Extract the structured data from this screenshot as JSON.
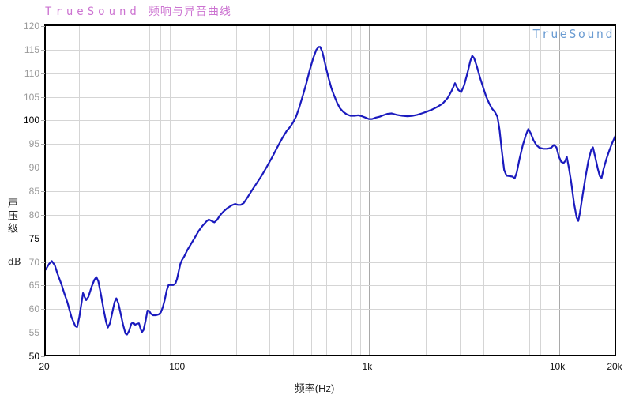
{
  "header": {
    "brand": "TrueSound",
    "title": "频响与异音曲线"
  },
  "watermark": {
    "text": "TrueSound"
  },
  "colors": {
    "curve": "#1a1abe",
    "brand": "#cc73d1",
    "watermark": "#6b9cd2",
    "grid_minor": "#d5d5d5",
    "grid_major": "#a9a9a9",
    "tick_label_minor": "#9a9a9a",
    "tick_label_major": "#000000",
    "frame": "#000000"
  },
  "chart_data": {
    "type": "line",
    "title": "TrueSound 频响与异音曲线",
    "xlabel": "频率(Hz)",
    "ylabel": "声压级",
    "ylabel_unit": "dB",
    "x_scale": "log",
    "xlim": [
      20,
      20000
    ],
    "ylim": [
      50,
      120
    ],
    "grid": true,
    "legend": "none",
    "x_ticks": [
      {
        "value": 20,
        "label": "20"
      },
      {
        "value": 100,
        "label": "100"
      },
      {
        "value": 1000,
        "label": "1k"
      },
      {
        "value": 10000,
        "label": "10k"
      },
      {
        "value": 20000,
        "label": "20k"
      }
    ],
    "y_tick_step": 5,
    "y_major_labels": [
      100,
      75,
      50
    ],
    "series": [
      {
        "name": "frequency-response-curve",
        "color": "#1a1abe",
        "points": [
          [
            20,
            68.4
          ],
          [
            20.8,
            69.6
          ],
          [
            21.5,
            70.2
          ],
          [
            22.3,
            69.3
          ],
          [
            23,
            67.6
          ],
          [
            24.2,
            65.2
          ],
          [
            25,
            63.4
          ],
          [
            26,
            61.4
          ],
          [
            27.3,
            58.3
          ],
          [
            28.6,
            56.4
          ],
          [
            29.2,
            56.2
          ],
          [
            30,
            58.3
          ],
          [
            30.8,
            61.2
          ],
          [
            31.4,
            63.4
          ],
          [
            32,
            62.6
          ],
          [
            32.6,
            61.9
          ],
          [
            33.5,
            62.6
          ],
          [
            34.8,
            64.7
          ],
          [
            36,
            66.2
          ],
          [
            36.9,
            66.8
          ],
          [
            37.8,
            65.9
          ],
          [
            39,
            63.1
          ],
          [
            40.3,
            59.9
          ],
          [
            41.5,
            57.3
          ],
          [
            42.4,
            56.1
          ],
          [
            43.5,
            57.0
          ],
          [
            44.8,
            59.4
          ],
          [
            46,
            61.5
          ],
          [
            47,
            62.3
          ],
          [
            48.2,
            61.2
          ],
          [
            49.5,
            59.1
          ],
          [
            51,
            56.7
          ],
          [
            52.5,
            54.8
          ],
          [
            53.5,
            54.6
          ],
          [
            54.8,
            55.4
          ],
          [
            56.3,
            56.9
          ],
          [
            57.5,
            57.2
          ],
          [
            59,
            56.7
          ],
          [
            60.5,
            56.9
          ],
          [
            61.8,
            57.0
          ],
          [
            63,
            55.9
          ],
          [
            64,
            55.1
          ],
          [
            65.3,
            55.6
          ],
          [
            67,
            57.6
          ],
          [
            68.5,
            59.7
          ],
          [
            70,
            59.6
          ],
          [
            71.5,
            59.0
          ],
          [
            73.5,
            58.7
          ],
          [
            76,
            58.7
          ],
          [
            78.5,
            58.9
          ],
          [
            80.5,
            59.3
          ],
          [
            82.5,
            60.4
          ],
          [
            84.5,
            62.0
          ],
          [
            86.5,
            64.0
          ],
          [
            88.5,
            65.1
          ],
          [
            91,
            65.1
          ],
          [
            93.5,
            65.1
          ],
          [
            96,
            65.4
          ],
          [
            98,
            66.4
          ],
          [
            100,
            68.0
          ],
          [
            102,
            69.6
          ],
          [
            104,
            70.4
          ],
          [
            107,
            71.2
          ],
          [
            111,
            72.5
          ],
          [
            116,
            73.8
          ],
          [
            121,
            75.0
          ],
          [
            127,
            76.5
          ],
          [
            133,
            77.6
          ],
          [
            140,
            78.6
          ],
          [
            144,
            79.0
          ],
          [
            149,
            78.7
          ],
          [
            154,
            78.4
          ],
          [
            159,
            78.9
          ],
          [
            165,
            79.9
          ],
          [
            172,
            80.7
          ],
          [
            180,
            81.4
          ],
          [
            190,
            82.0
          ],
          [
            198,
            82.3
          ],
          [
            205,
            82.1
          ],
          [
            212,
            82.1
          ],
          [
            220,
            82.5
          ],
          [
            230,
            83.7
          ],
          [
            243,
            85.2
          ],
          [
            258,
            86.8
          ],
          [
            273,
            88.3
          ],
          [
            290,
            90.1
          ],
          [
            310,
            92.2
          ],
          [
            330,
            94.3
          ],
          [
            350,
            96.2
          ],
          [
            370,
            97.8
          ],
          [
            385,
            98.6
          ],
          [
            400,
            99.6
          ],
          [
            415,
            100.9
          ],
          [
            430,
            102.7
          ],
          [
            450,
            105.3
          ],
          [
            470,
            108.0
          ],
          [
            490,
            110.8
          ],
          [
            510,
            113.2
          ],
          [
            530,
            115.0
          ],
          [
            545,
            115.6
          ],
          [
            555,
            115.6
          ],
          [
            570,
            114.5
          ],
          [
            585,
            112.6
          ],
          [
            600,
            110.6
          ],
          [
            615,
            108.9
          ],
          [
            635,
            106.9
          ],
          [
            655,
            105.4
          ],
          [
            680,
            103.8
          ],
          [
            705,
            102.6
          ],
          [
            735,
            101.8
          ],
          [
            765,
            101.3
          ],
          [
            800,
            101.0
          ],
          [
            840,
            101.0
          ],
          [
            880,
            101.1
          ],
          [
            920,
            100.9
          ],
          [
            960,
            100.6
          ],
          [
            1000,
            100.3
          ],
          [
            1040,
            100.3
          ],
          [
            1090,
            100.6
          ],
          [
            1140,
            100.8
          ],
          [
            1190,
            101.1
          ],
          [
            1250,
            101.4
          ],
          [
            1320,
            101.5
          ],
          [
            1400,
            101.2
          ],
          [
            1500,
            101.0
          ],
          [
            1600,
            100.9
          ],
          [
            1700,
            101.0
          ],
          [
            1800,
            101.2
          ],
          [
            1900,
            101.5
          ],
          [
            2000,
            101.8
          ],
          [
            2150,
            102.3
          ],
          [
            2300,
            102.9
          ],
          [
            2450,
            103.6
          ],
          [
            2600,
            104.8
          ],
          [
            2720,
            106.2
          ],
          [
            2840,
            107.9
          ],
          [
            2950,
            106.5
          ],
          [
            3060,
            106.0
          ],
          [
            3170,
            107.4
          ],
          [
            3300,
            110.0
          ],
          [
            3420,
            112.6
          ],
          [
            3500,
            113.7
          ],
          [
            3580,
            113.2
          ],
          [
            3700,
            111.5
          ],
          [
            3850,
            109.0
          ],
          [
            4000,
            106.9
          ],
          [
            4150,
            105.0
          ],
          [
            4300,
            103.6
          ],
          [
            4450,
            102.5
          ],
          [
            4600,
            101.8
          ],
          [
            4750,
            100.8
          ],
          [
            4870,
            98.0
          ],
          [
            5000,
            93.8
          ],
          [
            5150,
            89.5
          ],
          [
            5300,
            88.3
          ],
          [
            5500,
            88.2
          ],
          [
            5700,
            88.1
          ],
          [
            5850,
            87.7
          ],
          [
            6000,
            89.0
          ],
          [
            6200,
            91.8
          ],
          [
            6450,
            94.7
          ],
          [
            6700,
            96.9
          ],
          [
            6900,
            98.2
          ],
          [
            7100,
            97.3
          ],
          [
            7350,
            95.8
          ],
          [
            7600,
            94.8
          ],
          [
            7900,
            94.2
          ],
          [
            8300,
            94.0
          ],
          [
            8700,
            94.0
          ],
          [
            9100,
            94.2
          ],
          [
            9400,
            94.8
          ],
          [
            9700,
            94.3
          ],
          [
            10000,
            92.3
          ],
          [
            10300,
            91.2
          ],
          [
            10600,
            91.0
          ],
          [
            10800,
            91.4
          ],
          [
            11000,
            92.3
          ],
          [
            11300,
            89.8
          ],
          [
            11600,
            86.9
          ],
          [
            12000,
            82.5
          ],
          [
            12400,
            79.4
          ],
          [
            12650,
            78.7
          ],
          [
            12900,
            80.5
          ],
          [
            13300,
            84.0
          ],
          [
            13800,
            88.0
          ],
          [
            14300,
            91.5
          ],
          [
            14800,
            93.8
          ],
          [
            15100,
            94.3
          ],
          [
            15500,
            92.3
          ],
          [
            16000,
            89.8
          ],
          [
            16400,
            88.2
          ],
          [
            16750,
            87.8
          ],
          [
            17200,
            89.8
          ],
          [
            17800,
            91.9
          ],
          [
            18400,
            93.6
          ],
          [
            19100,
            95.3
          ],
          [
            19600,
            96.3
          ],
          [
            20000,
            97.2
          ]
        ]
      }
    ]
  }
}
